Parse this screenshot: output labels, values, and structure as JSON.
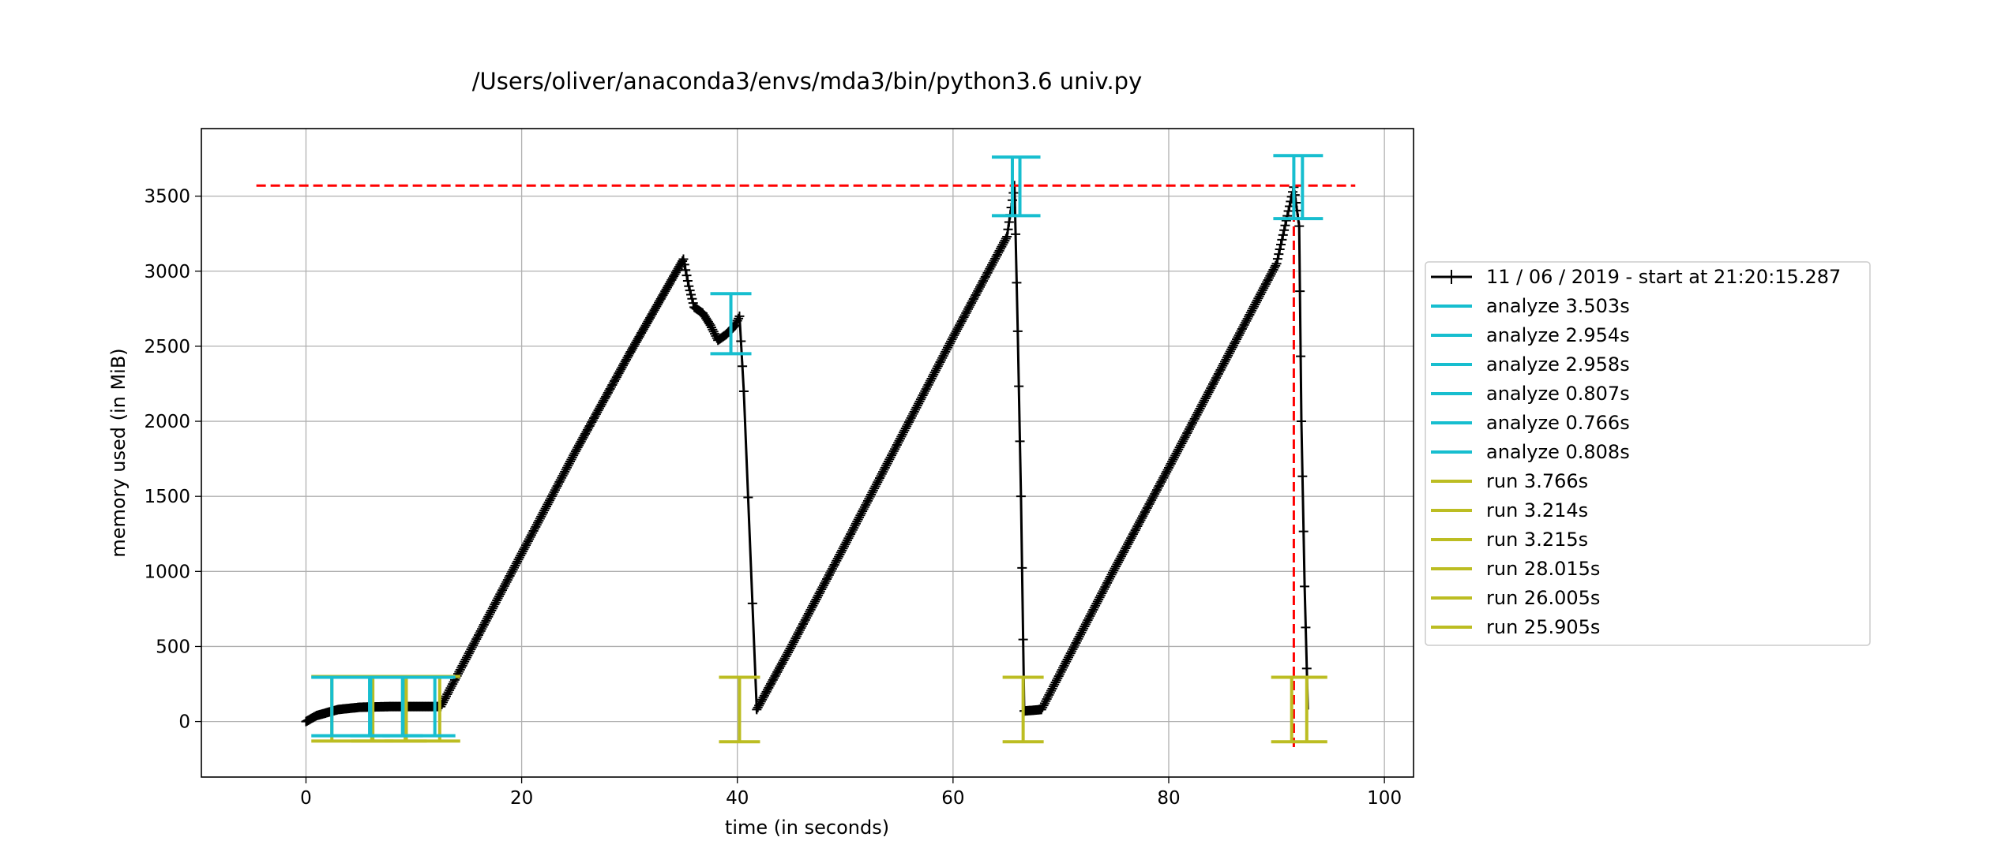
{
  "chart_data": {
    "type": "line",
    "title": "/Users/oliver/anaconda3/envs/mda3/bin/python3.6 univ.py",
    "xlabel": "time (in seconds)",
    "ylabel": "memory used (in MiB)",
    "xlim": [
      -9.7,
      102.7
    ],
    "ylim": [
      -370,
      3950
    ],
    "xticks": [
      0,
      20,
      40,
      60,
      80,
      100
    ],
    "yticks": [
      0,
      500,
      1000,
      1500,
      2000,
      2500,
      3000,
      3500
    ],
    "grid": true,
    "legend_position": "center-right-outside",
    "colors": {
      "memory": "#000000",
      "analyze": "#17becf",
      "run": "#bcbd22",
      "peak": "#ff0000",
      "grid": "#b0b0b0"
    },
    "peak_line": {
      "y": 3570,
      "x_start": -4.6,
      "x_end": 97.3
    },
    "peak_time_line": {
      "x": 91.6,
      "y_start": -170,
      "y_end": 3620
    },
    "memory_series": {
      "name": "11 / 06 / 2019 - start at 21:20:15.287",
      "x": [
        0,
        1,
        2,
        3,
        5,
        8,
        11,
        12.5,
        15,
        20,
        25,
        30,
        35,
        35.5,
        36,
        36.8,
        37.5,
        38.2,
        39,
        39.8,
        40.2,
        40.6,
        41.8,
        45,
        50,
        55,
        60,
        65,
        65.7,
        66,
        66.3,
        66.6,
        68.2,
        70,
        75,
        80,
        85,
        90,
        91.6,
        92.1,
        92.3,
        92.6,
        92.9
      ],
      "y": [
        0,
        40,
        60,
        80,
        95,
        100,
        100,
        100,
        440,
        1120,
        1800,
        2450,
        3080,
        2900,
        2760,
        2720,
        2640,
        2540,
        2580,
        2640,
        2700,
        2200,
        80,
        500,
        1180,
        1870,
        2560,
        3230,
        3570,
        2600,
        1500,
        70,
        80,
        330,
        1020,
        1690,
        2370,
        3050,
        3560,
        3300,
        2000,
        900,
        80
      ]
    },
    "analyze_markers": [
      {
        "label": "analyze 3.503s",
        "x": [
          2.4,
          5.9
        ],
        "y_low": -95,
        "y_high": 295,
        "type": "box"
      },
      {
        "label": "analyze 2.954s",
        "x": [
          6.0,
          8.95
        ],
        "y_low": -95,
        "y_high": 295,
        "type": "box"
      },
      {
        "label": "analyze 2.958s",
        "x": [
          9.0,
          11.95
        ],
        "y_low": -95,
        "y_high": 295,
        "type": "box"
      },
      {
        "label": "analyze 0.807s",
        "x": [
          39.4
        ],
        "y_low": 2450,
        "y_high": 2850,
        "type": "errorbar"
      },
      {
        "label": "analyze 0.766s",
        "x": [
          65.5,
          66.2
        ],
        "y_low": 3370,
        "y_high": 3760,
        "type": "box"
      },
      {
        "label": "analyze 0.808s",
        "x": [
          91.6,
          92.4
        ],
        "y_low": 3350,
        "y_high": 3770,
        "type": "box"
      }
    ],
    "run_markers": [
      {
        "label": "run 3.766s",
        "x": [
          2.4,
          6.2
        ],
        "y_low": -130,
        "y_high": 300,
        "type": "box"
      },
      {
        "label": "run 3.214s",
        "x": [
          6.1,
          9.3
        ],
        "y_low": -130,
        "y_high": 300,
        "type": "box"
      },
      {
        "label": "run 3.215s",
        "x": [
          9.2,
          12.4
        ],
        "y_low": -130,
        "y_high": 300,
        "type": "box"
      },
      {
        "label": "run 28.015s",
        "x": [
          40.2
        ],
        "y_low": -135,
        "y_high": 295,
        "type": "errorbar"
      },
      {
        "label": "run 26.005s",
        "x": [
          66.5
        ],
        "y_low": -135,
        "y_high": 295,
        "type": "errorbar"
      },
      {
        "label": "run 25.905s",
        "x": [
          91.4,
          92.8
        ],
        "y_low": -135,
        "y_high": 295,
        "type": "box"
      }
    ]
  }
}
